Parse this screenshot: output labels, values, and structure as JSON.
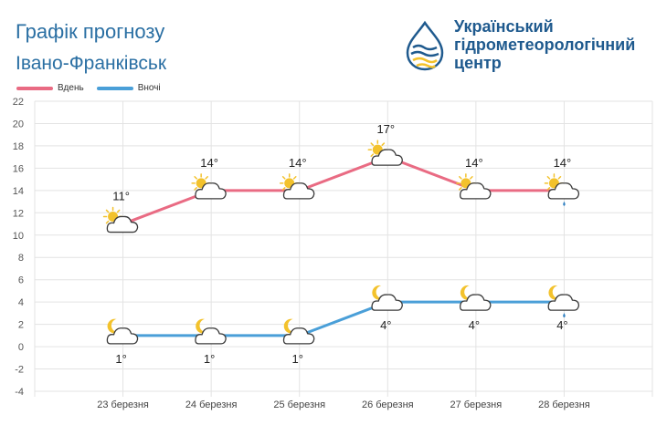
{
  "header": {
    "title": "Графік прогнозу",
    "city": "Івано-Франківськ",
    "org_lines": [
      "Український",
      "гідрометеорологічний",
      "центр"
    ]
  },
  "legend": {
    "day_label": "Вдень",
    "night_label": "Вночі"
  },
  "colors": {
    "day": "#e96b83",
    "night": "#4a9fd8",
    "brand_blue": "#1f5a8e",
    "brand_yellow": "#f3c22c",
    "grid": "#e3e3e3"
  },
  "chart_data": {
    "type": "line",
    "categories": [
      "23 березня",
      "24 березня",
      "25 березня",
      "26 березня",
      "27 березня",
      "28 березня"
    ],
    "ylim": [
      -4,
      22
    ],
    "yticks": [
      -4,
      -2,
      0,
      2,
      4,
      6,
      8,
      10,
      12,
      14,
      16,
      18,
      20,
      22
    ],
    "grid": true,
    "legend_position": "top-left",
    "series": [
      {
        "name": "Вдень",
        "values": [
          11,
          14,
          14,
          17,
          14,
          14
        ],
        "labels": [
          "11°",
          "14°",
          "14°",
          "17°",
          "14°",
          "14°"
        ],
        "icons": [
          "sun-cloud-icon",
          "sun-cloud-icon",
          "sun-cloud-icon",
          "sun-cloud-icon",
          "sun-cloud-icon",
          "sun-rain-cloud-icon"
        ]
      },
      {
        "name": "Вночі",
        "values": [
          1,
          1,
          1,
          4,
          4,
          4
        ],
        "labels": [
          "1°",
          "1°",
          "1°",
          "4°",
          "4°",
          "4°"
        ],
        "icons": [
          "moon-cloud-icon",
          "moon-cloud-icon",
          "moon-cloud-icon",
          "moon-cloud-icon",
          "moon-cloud-icon",
          "moon-rain-cloud-icon"
        ]
      }
    ]
  }
}
